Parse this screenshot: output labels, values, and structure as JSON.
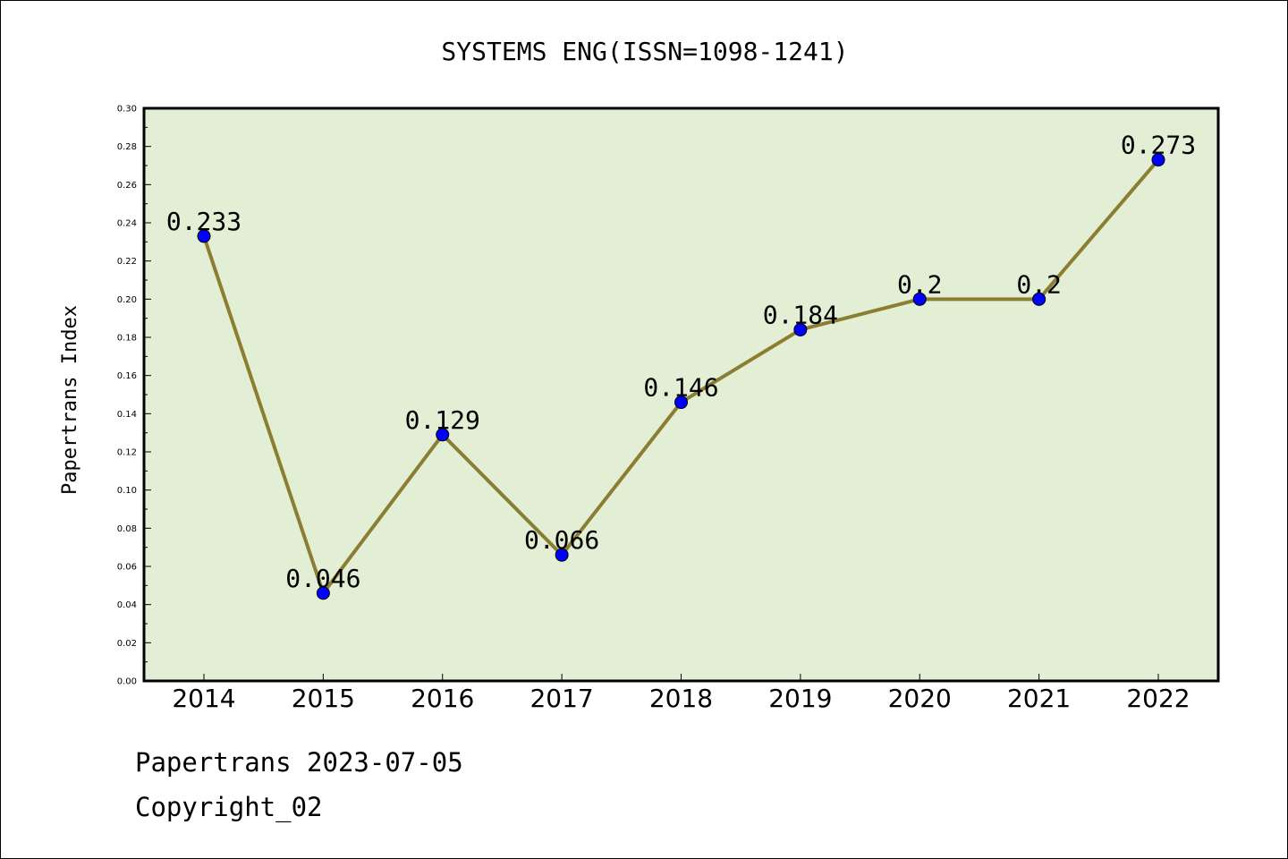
{
  "chart_data": {
    "type": "line",
    "title": "SYSTEMS ENG(ISSN=1098-1241)",
    "xlabel": "",
    "ylabel": "Papertrans Index",
    "categories": [
      "2014",
      "2015",
      "2016",
      "2017",
      "2018",
      "2019",
      "2020",
      "2021",
      "2022"
    ],
    "series": [
      {
        "values": [
          0.233,
          0.046,
          0.129,
          0.066,
          0.146,
          0.184,
          0.2,
          0.2,
          0.273
        ],
        "labels": [
          "0.233",
          "0.046",
          "0.129",
          "0.066",
          "0.146",
          "0.184",
          "0.2",
          "0.2",
          "0.273"
        ]
      }
    ],
    "ylim": [
      0,
      0.3
    ],
    "yticks": [
      "0.00",
      "0.02",
      "0.04",
      "0.06",
      "0.08",
      "0.10",
      "0.12",
      "0.14",
      "0.16",
      "0.18",
      "0.20",
      "0.22",
      "0.24",
      "0.26",
      "0.28",
      "0.30"
    ],
    "grid": false,
    "colors": {
      "plot_background": "#e2efd5",
      "line": "#8b7d32",
      "marker": "#0000ff",
      "frame": "#000000"
    }
  },
  "footer": {
    "line1": "Papertrans 2023-07-05",
    "line2": "Copyright_02"
  }
}
